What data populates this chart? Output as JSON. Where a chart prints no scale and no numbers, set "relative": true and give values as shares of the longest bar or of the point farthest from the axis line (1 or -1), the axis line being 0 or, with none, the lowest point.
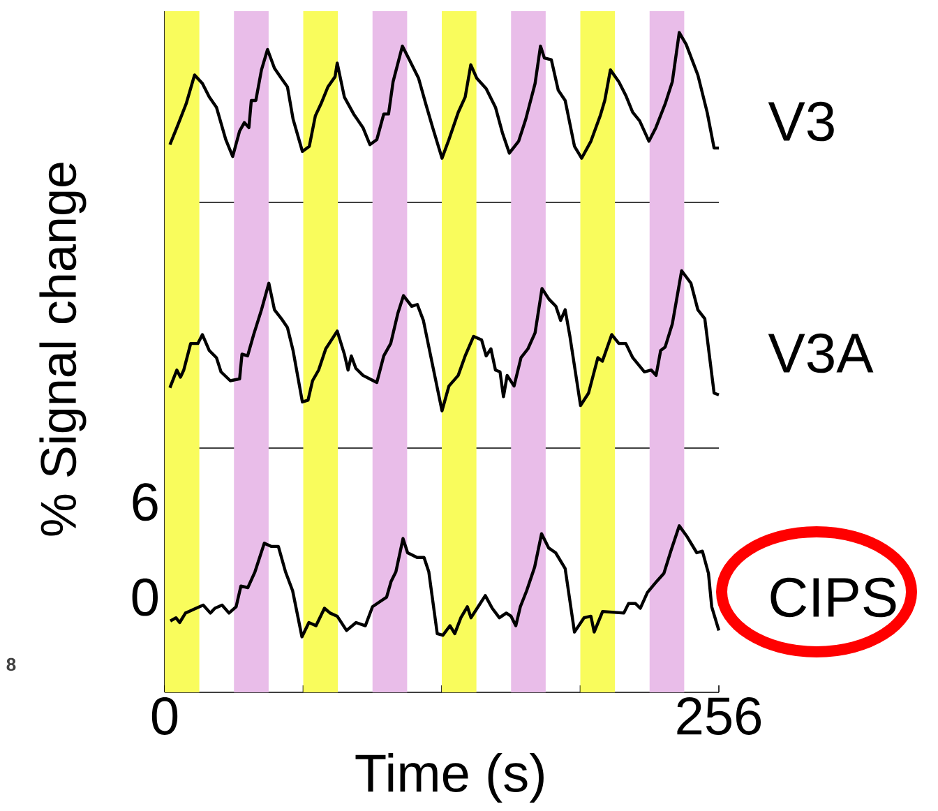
{
  "chart_data": [
    {
      "type": "line",
      "relative": true,
      "xlim": [
        0,
        256
      ],
      "tick_labels": false,
      "bands": [
        {
          "axis": "x",
          "from": 0,
          "to": 16,
          "color": "#f9fc5c"
        },
        {
          "axis": "x",
          "from": 32,
          "to": 48,
          "color": "#e9bde9"
        },
        {
          "axis": "x",
          "from": 64,
          "to": 80,
          "color": "#f9fc5c"
        },
        {
          "axis": "x",
          "from": 96,
          "to": 112,
          "color": "#e9bde9"
        },
        {
          "axis": "x",
          "from": 128,
          "to": 144,
          "color": "#f9fc5c"
        },
        {
          "axis": "x",
          "from": 160,
          "to": 176,
          "color": "#e9bde9"
        },
        {
          "axis": "x",
          "from": 192,
          "to": 208,
          "color": "#f9fc5c"
        },
        {
          "axis": "x",
          "from": 224,
          "to": 240,
          "color": "#e9bde9"
        }
      ],
      "series": [
        {
          "name": "V3",
          "color": "#000000",
          "x": [
            2.4,
            5.6,
            9.9,
            13.8,
            17.4,
            20.6,
            23.9,
            28.2,
            31.4,
            34.6,
            36.8,
            38.9,
            40.0,
            42.1,
            44.7,
            47.5,
            50.7,
            53.9,
            56.7,
            59.3,
            63.6,
            66.8,
            69.6,
            72.2,
            75.4,
            78.7,
            79.7,
            83.0,
            87.3,
            91.6,
            94.8,
            98.0,
            101.2,
            103.4,
            105.5,
            109.8,
            113.0,
            117.3,
            120.6,
            123.8,
            128.1,
            131.3,
            135.6,
            138.8,
            141.4,
            144.2,
            148.5,
            152.8,
            156.0,
            159.2,
            163.5,
            166.8,
            171.1,
            173.6,
            175.4,
            178.6,
            181.8,
            185.0,
            189.3,
            192.6,
            196.9,
            201.2,
            203.3,
            205.9,
            209.8,
            213.0,
            216.2,
            219.4,
            223.7,
            226.9,
            231.2,
            234.5,
            237.7,
            240.9,
            246.3,
            250.6,
            253.8,
            256.0
          ],
          "values": [
            0.34,
            0.44,
            0.58,
            0.75,
            0.7,
            0.62,
            0.56,
            0.37,
            0.27,
            0.42,
            0.47,
            0.44,
            0.6,
            0.6,
            0.78,
            0.9,
            0.79,
            0.73,
            0.68,
            0.49,
            0.3,
            0.33,
            0.51,
            0.58,
            0.68,
            0.74,
            0.82,
            0.62,
            0.52,
            0.44,
            0.34,
            0.37,
            0.52,
            0.52,
            0.71,
            0.92,
            0.84,
            0.73,
            0.58,
            0.44,
            0.26,
            0.37,
            0.53,
            0.62,
            0.81,
            0.73,
            0.67,
            0.56,
            0.41,
            0.29,
            0.36,
            0.49,
            0.7,
            0.92,
            0.85,
            0.84,
            0.66,
            0.6,
            0.33,
            0.26,
            0.36,
            0.51,
            0.6,
            0.78,
            0.71,
            0.63,
            0.53,
            0.48,
            0.36,
            0.44,
            0.58,
            0.71,
            1.0,
            0.93,
            0.75,
            0.53,
            0.32,
            0.32
          ]
        }
      ]
    },
    {
      "type": "line",
      "relative": true,
      "xlim": [
        0,
        256
      ],
      "tick_labels": false,
      "ylabel": "% Signal change",
      "bands": [
        {
          "axis": "x",
          "from": 0,
          "to": 16,
          "color": "#f9fc5c"
        },
        {
          "axis": "x",
          "from": 32,
          "to": 48,
          "color": "#e9bde9"
        },
        {
          "axis": "x",
          "from": 64,
          "to": 80,
          "color": "#f9fc5c"
        },
        {
          "axis": "x",
          "from": 96,
          "to": 112,
          "color": "#e9bde9"
        },
        {
          "axis": "x",
          "from": 128,
          "to": 144,
          "color": "#f9fc5c"
        },
        {
          "axis": "x",
          "from": 160,
          "to": 176,
          "color": "#e9bde9"
        },
        {
          "axis": "x",
          "from": 192,
          "to": 208,
          "color": "#f9fc5c"
        },
        {
          "axis": "x",
          "from": 224,
          "to": 240,
          "color": "#e9bde9"
        }
      ],
      "series": [
        {
          "name": "V3A",
          "color": "#000000",
          "x": [
            2.4,
            5.6,
            7.3,
            8.8,
            12.0,
            15.3,
            17.4,
            20.6,
            23.9,
            26.0,
            30.3,
            34.6,
            35.7,
            38.3,
            41.1,
            44.7,
            48.1,
            50.7,
            53.9,
            56.7,
            59.3,
            63.6,
            66.2,
            68.3,
            71.1,
            74.4,
            79.7,
            83.0,
            84.7,
            86.2,
            88.3,
            91.6,
            94.8,
            98.0,
            101.2,
            104.4,
            107.7,
            110.3,
            114.1,
            116.7,
            119.5,
            122.7,
            128.1,
            131.3,
            135.6,
            138.8,
            142.7,
            146.4,
            148.5,
            150.7,
            152.8,
            154.9,
            156.5,
            158.2,
            161.4,
            164.6,
            167.8,
            171.1,
            174.3,
            177.5,
            180.7,
            182.9,
            185.0,
            187.2,
            192.1,
            195.8,
            200.1,
            202.2,
            206.5,
            209.8,
            213.0,
            216.2,
            221.6,
            224.8,
            227.0,
            229.1,
            231.2,
            234.5,
            238.8,
            243.1,
            246.3,
            249.5,
            253.8,
            256.0
          ],
          "values": [
            0.34,
            0.44,
            0.4,
            0.44,
            0.59,
            0.59,
            0.64,
            0.55,
            0.51,
            0.43,
            0.38,
            0.39,
            0.53,
            0.52,
            0.64,
            0.78,
            0.93,
            0.78,
            0.73,
            0.68,
            0.55,
            0.26,
            0.27,
            0.38,
            0.44,
            0.56,
            0.66,
            0.53,
            0.44,
            0.52,
            0.45,
            0.41,
            0.39,
            0.37,
            0.52,
            0.59,
            0.76,
            0.86,
            0.8,
            0.81,
            0.72,
            0.53,
            0.21,
            0.35,
            0.41,
            0.52,
            0.63,
            0.61,
            0.52,
            0.56,
            0.44,
            0.43,
            0.29,
            0.41,
            0.35,
            0.51,
            0.56,
            0.65,
            0.9,
            0.84,
            0.8,
            0.72,
            0.78,
            0.63,
            0.24,
            0.31,
            0.51,
            0.49,
            0.64,
            0.59,
            0.59,
            0.51,
            0.43,
            0.44,
            0.41,
            0.55,
            0.57,
            0.7,
            1.0,
            0.93,
            0.78,
            0.73,
            0.31,
            0.3
          ]
        }
      ]
    },
    {
      "type": "line",
      "xlim": [
        0,
        256
      ],
      "ylim": [
        -6,
        9.4
      ],
      "xlabel": "Time (s)",
      "xticks": [
        0,
        {
          "value": 64,
          "label": null
        },
        {
          "value": 128,
          "label": null
        },
        {
          "value": 192,
          "label": null
        },
        256
      ],
      "yticks": [
        0,
        6
      ],
      "annotations": [
        "8"
      ],
      "bands": [
        {
          "axis": "x",
          "from": 0,
          "to": 16,
          "color": "#f9fc5c"
        },
        {
          "axis": "x",
          "from": 32,
          "to": 48,
          "color": "#e9bde9"
        },
        {
          "axis": "x",
          "from": 64,
          "to": 80,
          "color": "#f9fc5c"
        },
        {
          "axis": "x",
          "from": 96,
          "to": 112,
          "color": "#e9bde9"
        },
        {
          "axis": "x",
          "from": 128,
          "to": 144,
          "color": "#f9fc5c"
        },
        {
          "axis": "x",
          "from": 160,
          "to": 176,
          "color": "#e9bde9"
        },
        {
          "axis": "x",
          "from": 192,
          "to": 208,
          "color": "#f9fc5c"
        },
        {
          "axis": "x",
          "from": 224,
          "to": 240,
          "color": "#e9bde9"
        }
      ],
      "series": [
        {
          "name": "CIPS",
          "color": "#000000",
          "x": [
            2.6,
            5.2,
            6.9,
            9.6,
            11.3,
            14.5,
            17.8,
            21.1,
            23.2,
            26.5,
            29.7,
            33.0,
            35.2,
            38.4,
            41.7,
            46.0,
            49.3,
            52.5,
            55.8,
            59.1,
            63.4,
            66.6,
            69.9,
            73.8,
            76.4,
            79.7,
            84.0,
            88.4,
            92.7,
            96.0,
            99.2,
            102.5,
            104.6,
            106.8,
            110.1,
            112.2,
            116.6,
            119.8,
            122.0,
            125.9,
            128.5,
            131.8,
            134.0,
            136.8,
            139.8,
            141.5,
            144.8,
            148.1,
            151.3,
            154.6,
            157.8,
            160.0,
            162.2,
            164.3,
            167.2,
            170.9,
            174.1,
            177.4,
            180.6,
            185.0,
            189.3,
            193.7,
            196.9,
            198.4,
            202.3,
            212.1,
            214.3,
            217.5,
            219.7,
            223.0,
            227.3,
            230.6,
            233.8,
            237.7,
            241.4,
            245.8,
            248.4,
            251.2,
            252.7,
            256.0
          ],
          "values": [
            -1.5,
            -1.3,
            -1.6,
            -1.0,
            -0.9,
            -0.7,
            -0.5,
            -1.0,
            -0.7,
            -0.5,
            -1.0,
            -0.6,
            0.7,
            0.6,
            1.6,
            3.4,
            3.2,
            3.2,
            1.6,
            0.4,
            -2.5,
            -1.6,
            -1.8,
            -0.7,
            -1.0,
            -1.2,
            -2.1,
            -1.6,
            -1.8,
            -0.6,
            -0.3,
            0.0,
            1.0,
            1.6,
            3.7,
            2.8,
            2.5,
            2.5,
            1.6,
            -2.3,
            -2.4,
            -1.8,
            -2.3,
            -1.3,
            -0.6,
            -1.3,
            -0.6,
            0.1,
            -0.7,
            -1.3,
            -1.0,
            -1.2,
            -1.8,
            -0.6,
            0.4,
            1.9,
            4.0,
            3.1,
            2.8,
            1.8,
            -2.2,
            -1.3,
            -1.2,
            -2.2,
            -0.9,
            -1.0,
            -0.4,
            -0.4,
            -0.7,
            0.3,
            1.0,
            1.5,
            2.9,
            4.5,
            3.8,
            2.8,
            2.9,
            1.5,
            -0.6,
            -2.1
          ]
        }
      ]
    }
  ]
}
